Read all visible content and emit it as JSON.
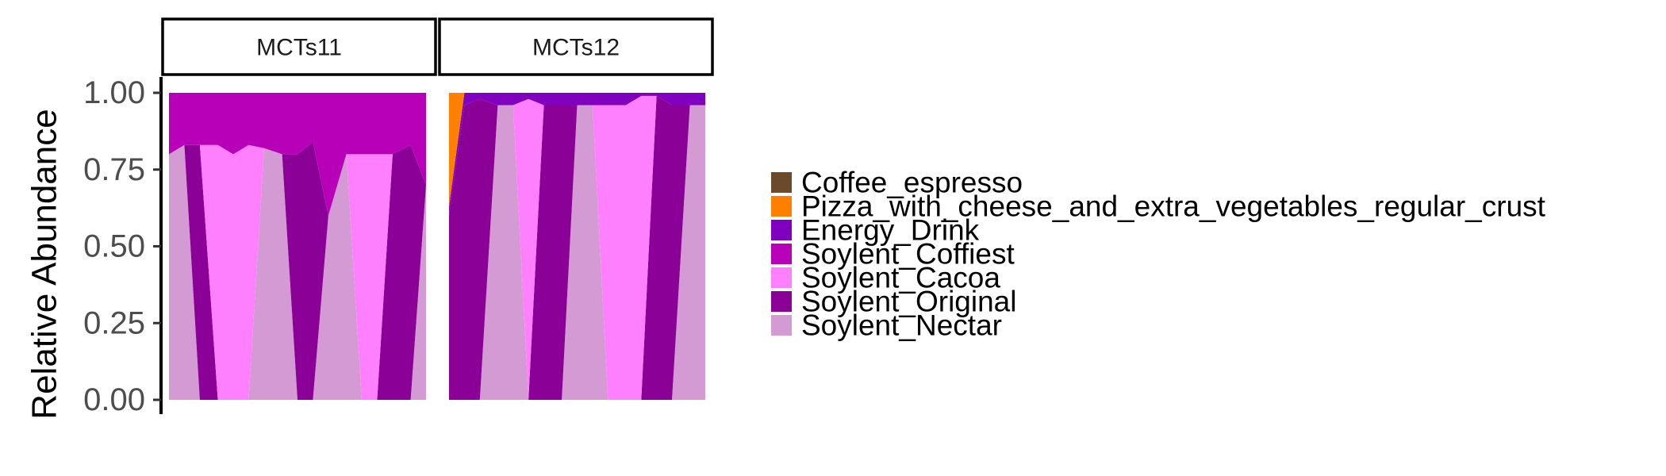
{
  "chart_data": {
    "type": "area",
    "stacked": true,
    "ylabel": "Relative Abundance",
    "ylim": [
      0,
      1
    ],
    "yticks": [
      "0.00",
      "0.25",
      "0.50",
      "0.75",
      "1.00"
    ],
    "grid": false,
    "legend_position": "right",
    "facets": [
      "MCTs11",
      "MCTs12"
    ],
    "legend": [
      {
        "name": "Coffee_espresso",
        "color": "#6b4a2b"
      },
      {
        "name": "Pizza_with_cheese_and_extra_vegetables_regular_crust",
        "color": "#ff8000"
      },
      {
        "name": "Energy_Drink",
        "color": "#8000c0"
      },
      {
        "name": "Soylent_Coffiest",
        "color": "#b800b8"
      },
      {
        "name": "Soylent_Cacoa",
        "color": "#ff80ff"
      },
      {
        "name": "Soylent_Original",
        "color": "#8b0096"
      },
      {
        "name": "Soylent_Nectar",
        "color": "#d49ad4"
      }
    ],
    "panels": [
      {
        "facet": "MCTs11",
        "x": [
          0,
          0.06,
          0.12,
          0.19,
          0.25,
          0.31,
          0.37,
          0.44,
          0.5,
          0.56,
          0.62,
          0.69,
          0.75,
          0.81,
          0.87,
          0.94,
          1
        ],
        "series": [
          {
            "name": "Soylent_Nectar",
            "values": [
              0.8,
              0.83,
              0.0,
              0.0,
              0.0,
              0.0,
              0.82,
              0.8,
              0.0,
              0.0,
              0.6,
              0.8,
              0.0,
              0.0,
              0.0,
              0.0,
              0.7
            ]
          },
          {
            "name": "Soylent_Original",
            "values": [
              0.0,
              0.0,
              0.83,
              0.0,
              0.0,
              0.0,
              0.0,
              0.0,
              0.8,
              0.84,
              0.0,
              0.0,
              0.0,
              0.0,
              0.8,
              0.83,
              0.0
            ]
          },
          {
            "name": "Soylent_Cacoa",
            "values": [
              0.0,
              0.0,
              0.0,
              0.83,
              0.8,
              0.83,
              0.0,
              0.0,
              0.0,
              0.0,
              0.0,
              0.0,
              0.8,
              0.8,
              0.0,
              0.0,
              0.0
            ]
          },
          {
            "name": "Soylent_Coffiest",
            "values": [
              0.2,
              0.17,
              0.17,
              0.17,
              0.2,
              0.17,
              0.18,
              0.2,
              0.2,
              0.16,
              0.4,
              0.2,
              0.2,
              0.2,
              0.2,
              0.17,
              0.3
            ]
          }
        ]
      },
      {
        "facet": "MCTs12",
        "x": [
          0,
          0.06,
          0.12,
          0.19,
          0.25,
          0.31,
          0.37,
          0.44,
          0.5,
          0.56,
          0.62,
          0.69,
          0.75,
          0.81,
          0.87,
          0.94,
          1
        ],
        "series": [
          {
            "name": "Soylent_Nectar",
            "values": [
              0.0,
              0.0,
              0.0,
              0.96,
              0.96,
              0.0,
              0.0,
              0.0,
              0.96,
              0.96,
              0.0,
              0.0,
              0.0,
              0.0,
              0.0,
              0.96,
              0.96
            ]
          },
          {
            "name": "Soylent_Original",
            "values": [
              0.6,
              0.96,
              0.98,
              0.0,
              0.0,
              0.0,
              0.96,
              0.96,
              0.0,
              0.0,
              0.0,
              0.0,
              0.0,
              0.99,
              0.96,
              0.0,
              0.0
            ]
          },
          {
            "name": "Soylent_Cacoa",
            "values": [
              0.0,
              0.0,
              0.0,
              0.0,
              0.0,
              0.98,
              0.0,
              0.0,
              0.0,
              0.0,
              0.96,
              0.96,
              0.99,
              0.0,
              0.0,
              0.0,
              0.0
            ]
          },
          {
            "name": "Energy_Drink",
            "values": [
              0.03,
              0.04,
              0.02,
              0.04,
              0.04,
              0.02,
              0.04,
              0.04,
              0.04,
              0.04,
              0.04,
              0.04,
              0.01,
              0.01,
              0.04,
              0.04,
              0.04
            ]
          },
          {
            "name": "Pizza_with_cheese_and_extra_vegetables_regular_crust",
            "values": [
              0.37,
              0.0,
              0.0,
              0.0,
              0.0,
              0.0,
              0.0,
              0.0,
              0.0,
              0.0,
              0.0,
              0.0,
              0.0,
              0.0,
              0.0,
              0.0,
              0.0
            ]
          }
        ]
      }
    ]
  }
}
